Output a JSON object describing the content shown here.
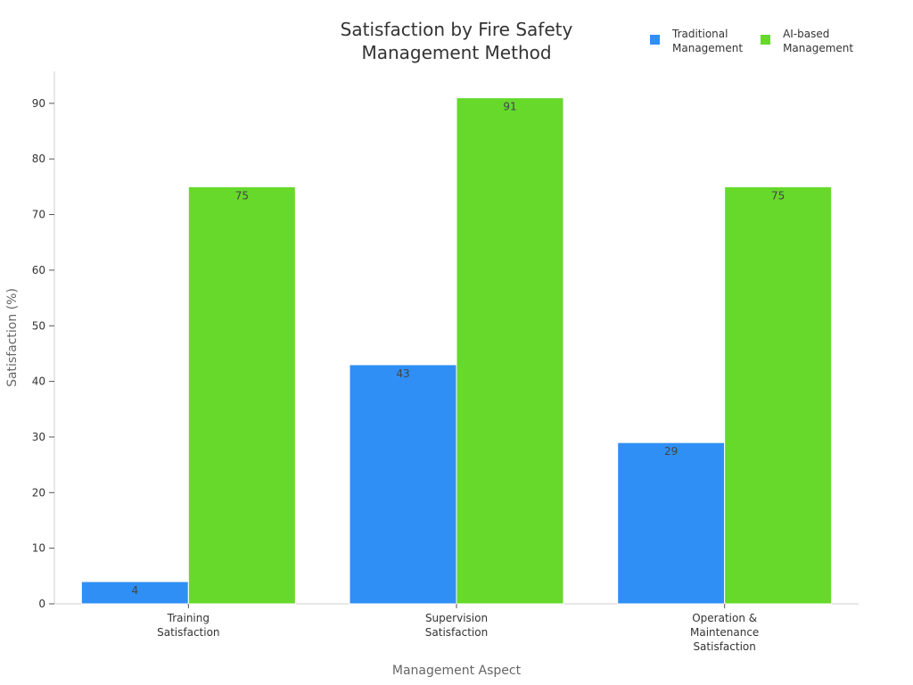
{
  "chart_data": {
    "type": "bar",
    "title": [
      "Satisfaction by Fire Safety",
      "Management Method"
    ],
    "xlabel": "Management Aspect",
    "ylabel": "Satisfaction (%)",
    "ylim": [
      0,
      96
    ],
    "yticks": [
      0,
      10,
      20,
      30,
      40,
      50,
      60,
      70,
      80,
      90
    ],
    "categories": [
      [
        "Training",
        "Satisfaction"
      ],
      [
        "Supervision",
        "Satisfaction"
      ],
      [
        "Operation &",
        "Maintenance",
        "Satisfaction"
      ]
    ],
    "series": [
      {
        "name": [
          "Traditional",
          "Management"
        ],
        "color": "#2f8ff5",
        "values": [
          4,
          43,
          29
        ]
      },
      {
        "name": [
          "AI-based",
          "Management"
        ],
        "color": "#66d92b",
        "values": [
          75,
          91,
          75
        ]
      }
    ],
    "grid": false,
    "legend_position": "top-right"
  }
}
